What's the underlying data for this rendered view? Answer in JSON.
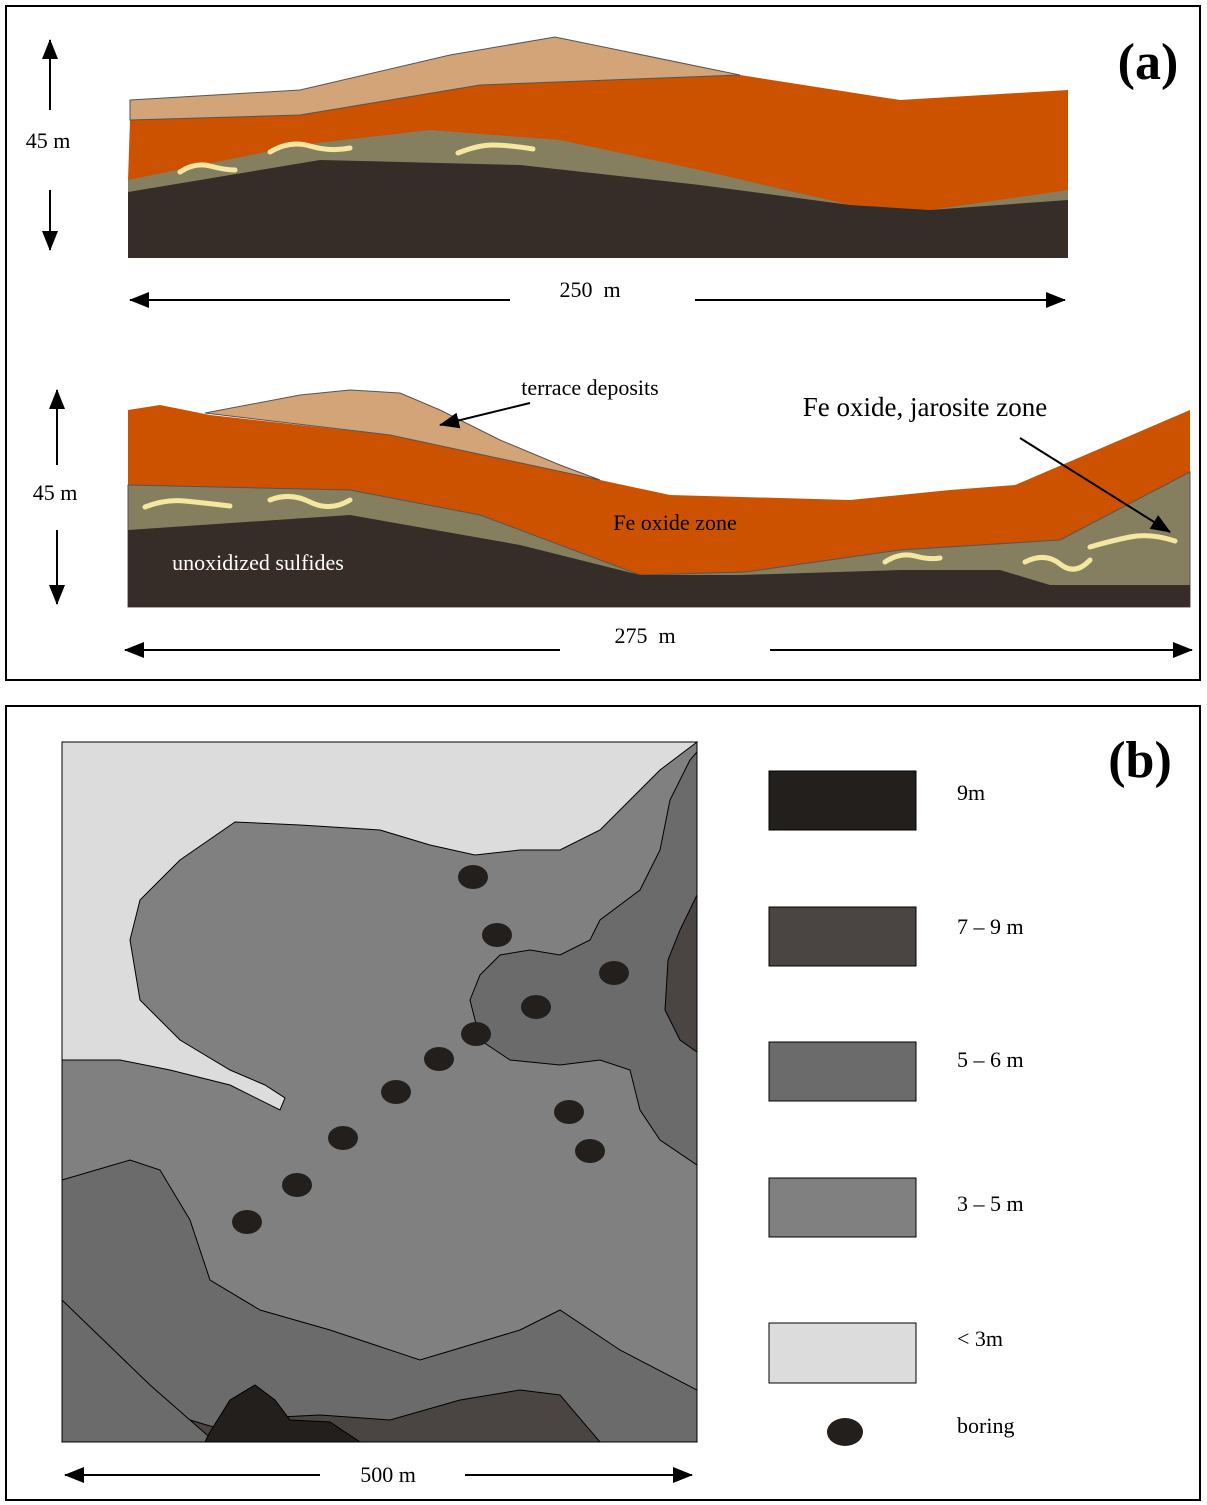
{
  "panel_a": {
    "label": "(a)",
    "section_1": {
      "height": "45 m",
      "width": "250  m"
    },
    "section_2": {
      "height": "45 m",
      "width": "275  m",
      "labels": {
        "terrace": "terrace deposits",
        "jarosite": "Fe oxide, jarosite zone",
        "fe_oxide": "Fe oxide zone",
        "unoxidized": "unoxidized sulfides"
      }
    }
  },
  "panel_b": {
    "label": "(b)",
    "scale": "500 m",
    "legend": [
      {
        "label": "9m"
      },
      {
        "label": "7 – 9 m"
      },
      {
        "label": "5 – 6 m"
      },
      {
        "label": "3 – 5 m"
      },
      {
        "label": "< 3m"
      },
      {
        "label": "boring"
      }
    ]
  }
}
